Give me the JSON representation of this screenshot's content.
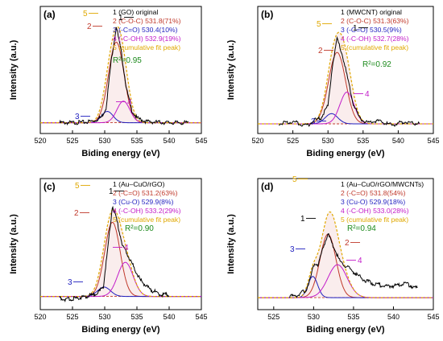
{
  "colors": {
    "measured": "#000000",
    "peak2": "#c0392b",
    "peak3": "#1f1fbf",
    "peak4": "#c21cc9",
    "cumulative": "#e0a800",
    "baseline": "#c0392b",
    "r2": "#1d8a1d"
  },
  "chart_data": [
    {
      "type": "line",
      "panel": "(a)",
      "xlabel": "Biding energy (eV)",
      "ylabel": "Intensity (a.u.)",
      "xlim": [
        520,
        545
      ],
      "xticks": [
        "520",
        "525",
        "530",
        "535",
        "540",
        "545"
      ],
      "legend": [
        {
          "peak": "1",
          "text": "1 (GO)      original"
        },
        {
          "peak": "2",
          "text": "2 (C-O-C) 531.8(71%)"
        },
        {
          "peak": "3",
          "text": "3 (-C=O)   530.4(10%)"
        },
        {
          "peak": "4",
          "text": "4 (-C-OH)  532.9(19%)"
        },
        {
          "peak": "5",
          "text": "5 (cumulative fit peak)"
        }
      ],
      "r2": "R²=0.95",
      "peaks": [
        {
          "label": "2",
          "center": 531.8,
          "height": 0.71,
          "width": 1.2
        },
        {
          "label": "3",
          "center": 530.4,
          "height": 0.1,
          "width": 0.9
        },
        {
          "label": "4",
          "center": 532.9,
          "height": 0.19,
          "width": 1.0
        }
      ],
      "measured": {
        "x": [
          523,
          525,
          527,
          528.5,
          529.5,
          530.2,
          531,
          531.8,
          532.6,
          533.4,
          534.2,
          535,
          536.5,
          538,
          540,
          543
        ],
        "y": [
          0.01,
          0.01,
          0.015,
          0.03,
          0.06,
          0.14,
          0.55,
          0.86,
          0.62,
          0.3,
          0.12,
          0.05,
          0.02,
          0.015,
          0.01,
          0.01
        ]
      },
      "baseline": 0.01
    },
    {
      "type": "line",
      "panel": "(b)",
      "xlabel": "Biding energy (eV)",
      "ylabel": "Intensity (a.u.)",
      "xlim": [
        520,
        545
      ],
      "xticks": [
        "520",
        "525",
        "530",
        "535",
        "540",
        "545"
      ],
      "legend": [
        {
          "peak": "1",
          "text": "1 (MWCNT) original"
        },
        {
          "peak": "2",
          "text": "2 (C-O-C) 531.3(63%)"
        },
        {
          "peak": "3",
          "text": "3 (-C=O)   530.5(9%)"
        },
        {
          "peak": "4",
          "text": "4 (-C-OH)  532.7(28%)"
        },
        {
          "peak": "5",
          "text": "5 (cumulative fit peak)"
        }
      ],
      "r2": "R²=0.92",
      "peaks": [
        {
          "label": "2",
          "center": 531.3,
          "height": 0.63,
          "width": 1.2
        },
        {
          "label": "3",
          "center": 530.5,
          "height": 0.09,
          "width": 0.9
        },
        {
          "label": "4",
          "center": 532.7,
          "height": 0.28,
          "width": 1.0
        }
      ],
      "measured": {
        "x": [
          523,
          525,
          527,
          528,
          529,
          530,
          530.6,
          531.3,
          532,
          532.8,
          533.6,
          534.5,
          535.5,
          537,
          539,
          541,
          543
        ],
        "y": [
          0.0,
          0.02,
          -0.02,
          0.03,
          0.05,
          0.16,
          0.5,
          0.75,
          0.62,
          0.4,
          0.18,
          0.05,
          0.01,
          0.03,
          -0.01,
          0.02,
          0.0
        ]
      },
      "baseline": 0.0
    },
    {
      "type": "line",
      "panel": "(c)",
      "xlabel": "Biding energy (eV)",
      "ylabel": "Intensity (a.u.)",
      "xlim": [
        520,
        545
      ],
      "xticks": [
        "520",
        "525",
        "530",
        "535",
        "540",
        "545"
      ],
      "legend": [
        {
          "peak": "1",
          "text": "1 (Au–CuO/rGO)"
        },
        {
          "peak": "2",
          "text": "2 (-C=O)  531.2(63%)"
        },
        {
          "peak": "3",
          "text": "3 (Cu-O)  529.9(8%)"
        },
        {
          "peak": "4",
          "text": "4 (-C-OH) 533.2(29%)"
        },
        {
          "peak": "5",
          "text": "5 (cumulative fit peak)"
        }
      ],
      "r2": "R²=0.90",
      "peaks": [
        {
          "label": "2",
          "center": 531.2,
          "height": 0.63,
          "width": 1.2
        },
        {
          "label": "3",
          "center": 529.9,
          "height": 0.08,
          "width": 1.0
        },
        {
          "label": "4",
          "center": 533.2,
          "height": 0.29,
          "width": 1.2
        }
      ],
      "measured": {
        "x": [
          523,
          524,
          525.5,
          527,
          528,
          529,
          529.8,
          530.5,
          531.2,
          532,
          532.8,
          533.6,
          534.5,
          535.5,
          537,
          538.5,
          540
        ],
        "y": [
          0.02,
          0.0,
          0.015,
          0.03,
          0.04,
          0.06,
          0.12,
          0.45,
          0.8,
          0.65,
          0.45,
          0.38,
          0.28,
          0.17,
          0.09,
          0.05,
          0.04
        ]
      },
      "baseline": 0.03
    },
    {
      "type": "line",
      "panel": "(d)",
      "xlabel": "Biding energy (eV)",
      "ylabel": "Intensity (a.u.)",
      "xlim": [
        523,
        545
      ],
      "xticks": [
        "525",
        "530",
        "535",
        "540",
        "545"
      ],
      "legend": [
        {
          "peak": "1",
          "text": "1 (Au–CuO/rGO/MWCNTs)"
        },
        {
          "peak": "2",
          "text": "2 (-C=O)   531.8(54%)"
        },
        {
          "peak": "3",
          "text": "3 (Cu-O)   529.9(18%)"
        },
        {
          "peak": "4",
          "text": "4 (-C-OH)  533.0(28%)"
        },
        {
          "peak": "5",
          "text": "5 (cumulative fit peak)"
        }
      ],
      "r2": "R²=0.94",
      "peaks": [
        {
          "label": "2",
          "center": 531.8,
          "height": 0.54,
          "width": 1.0
        },
        {
          "label": "3",
          "center": 529.9,
          "height": 0.18,
          "width": 0.6
        },
        {
          "label": "4",
          "center": 533.0,
          "height": 0.28,
          "width": 1.2
        }
      ],
      "measured": {
        "x": [
          527,
          528,
          529,
          529.6,
          530.1,
          530.6,
          531.2,
          531.8,
          532.5,
          533.3,
          534.2,
          535.2,
          536.3,
          537.5,
          538.8,
          540.2,
          541.5,
          543
        ],
        "y": [
          0.03,
          0.04,
          0.08,
          0.18,
          0.32,
          0.3,
          0.45,
          0.56,
          0.45,
          0.33,
          0.28,
          0.23,
          0.17,
          0.14,
          0.12,
          0.12,
          0.14,
          0.1
        ]
      },
      "baseline": 0.02
    }
  ]
}
